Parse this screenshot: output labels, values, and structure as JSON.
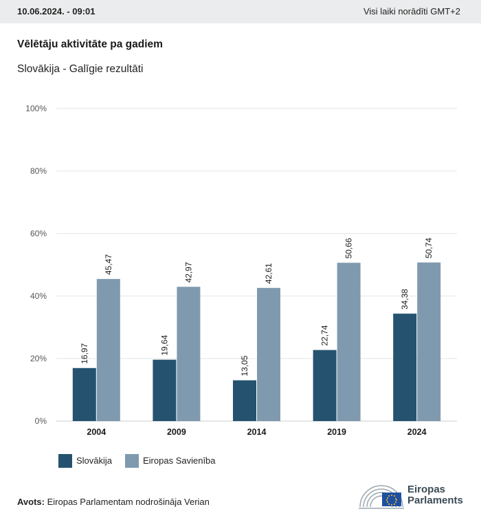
{
  "header": {
    "date": "10.06.2024. - 09:01",
    "timezone_note": "Visi laiki norādīti GMT+2"
  },
  "title": "Vēlētāju aktivitāte pa gadiem",
  "subtitle": "Slovākija - Galīgie rezultāti",
  "legend": {
    "items": [
      {
        "label": "Slovākija"
      },
      {
        "label": "Eiropas Savienība"
      }
    ]
  },
  "source": {
    "label": "Avots:",
    "text": "Eiropas Parlamentam nodrošināja Verian"
  },
  "logo": {
    "line1": "Eiropas",
    "line2": "Parlaments"
  },
  "colors": {
    "slovakia": "#25536f",
    "eu": "#7f9aaf",
    "grid": "#e3e5e7",
    "axis": "#c9cdd1",
    "topbar": "#ebeced"
  },
  "chart_data": {
    "type": "bar",
    "categories": [
      "2004",
      "2009",
      "2014",
      "2019",
      "2024"
    ],
    "series": [
      {
        "name": "Slovākija",
        "values": [
          16.97,
          19.64,
          13.05,
          22.74,
          34.38
        ],
        "labels": [
          "16,97",
          "19,64",
          "13,05",
          "22,74",
          "34,38"
        ]
      },
      {
        "name": "Eiropas Savienība",
        "values": [
          45.47,
          42.97,
          42.61,
          50.66,
          50.74
        ],
        "labels": [
          "45,47",
          "42,97",
          "42,61",
          "50,66",
          "50,74"
        ]
      }
    ],
    "ylim": [
      0,
      100
    ],
    "yticks": [
      0,
      20,
      40,
      60,
      80,
      100
    ],
    "ytick_labels": [
      "0%",
      "20%",
      "40%",
      "60%",
      "80%",
      "100%"
    ],
    "grid": true,
    "legend_position": "bottom-left"
  }
}
